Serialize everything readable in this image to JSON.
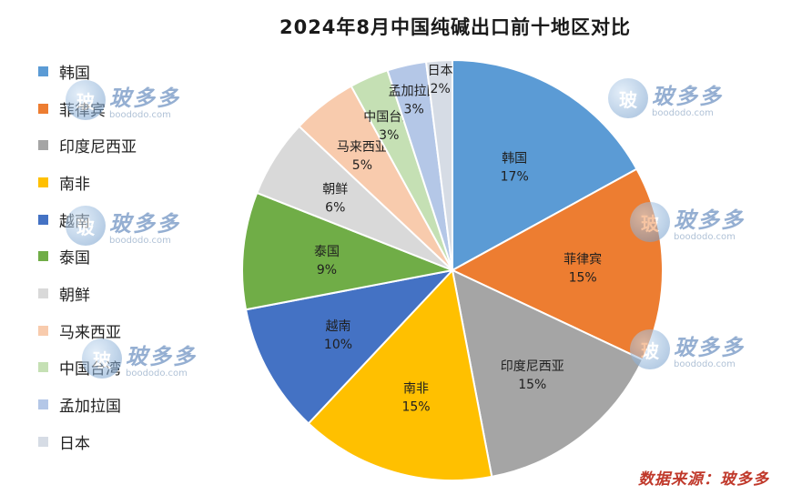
{
  "chart_data": {
    "type": "pie",
    "title": "2024年8月中国纯碱出口前十地区对比",
    "categories": [
      "韩国",
      "菲律宾",
      "印度尼西亚",
      "南非",
      "越南",
      "泰国",
      "朝鲜",
      "马来西亚",
      "中国台湾",
      "孟加拉国",
      "日本"
    ],
    "values": [
      17,
      15,
      15,
      15,
      10,
      9,
      6,
      5,
      3,
      3,
      2
    ],
    "value_labels": [
      "17%",
      "15%",
      "15%",
      "15%",
      "10%",
      "9%",
      "6%",
      "5%",
      "3%",
      "3%",
      "2%"
    ],
    "colors": [
      "#5b9bd5",
      "#ed7d31",
      "#a5a5a5",
      "#ffc000",
      "#4472c4",
      "#70ad47",
      "#d9d9d9",
      "#f8cbad",
      "#c5e0b4",
      "#b4c7e7",
      "#d6dce5"
    ],
    "legend_position": "left"
  },
  "watermark": {
    "name": "玻多多",
    "url": "boododo.com",
    "logo_glyph": "玻"
  },
  "source_text": "数据来源：玻多多"
}
